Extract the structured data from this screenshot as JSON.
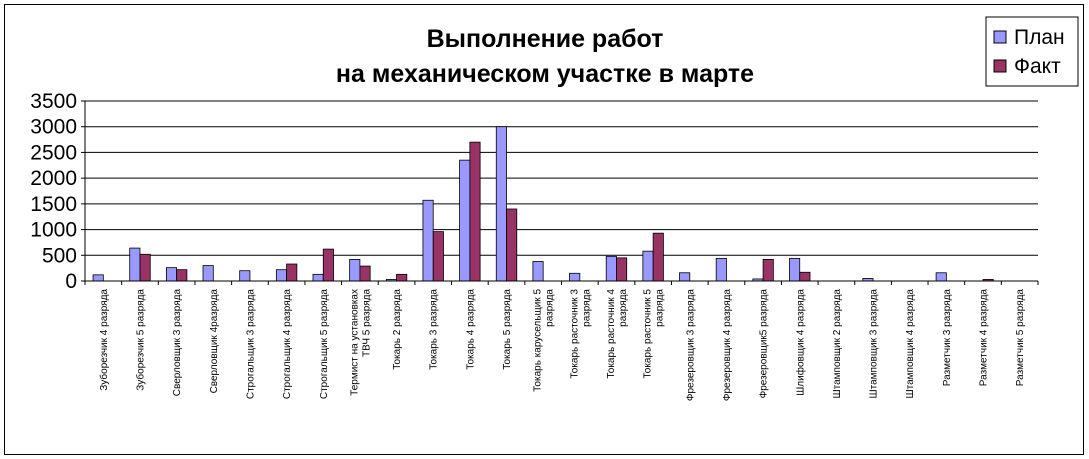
{
  "chart_data": {
    "type": "bar",
    "title": [
      "Выполнение работ",
      "на механическом участке в марте"
    ],
    "ylim": [
      0,
      3500
    ],
    "yticks": [
      0,
      500,
      1000,
      1500,
      2000,
      2500,
      3000,
      3500
    ],
    "grid": true,
    "legend_position": "top-right",
    "categories": [
      "Зуборезчик 4 разряда",
      "Зуборезчик 5 разряда",
      "Сверловщик 3 разряда",
      "Сверловщик 4разряда",
      "Строгальщик 3 разряда",
      "Строгальщик 4 разряда",
      "Строгальщик 5 разряда",
      "Термист на установках ТВЧ 5 разряда",
      "Токарь 2 разряда",
      "Токарь 3 разряда",
      "Токарь 4 разряда",
      "Токарь 5 разряда",
      "Токарь карусельщик 5 разряда",
      "Токарь расточник 3 разряда",
      "Токарь расточник 4 разряда",
      "Токарь расточник 5 разряда",
      "Фрезеровщик 3 разряда",
      "Фрезеровщик 4 разряда",
      "Фрезеровщик5 разряда",
      "Шлифовщик 4 разряда",
      "Штамповщик 2 разряда",
      "Штамповщик 3 разряда",
      "Штамповщик 4 разряда",
      "Разметчик 3 разряда",
      "Разметчик 4 разряда",
      "Разметчик 5 разряда"
    ],
    "series": [
      {
        "name": "План",
        "color": "#9999ff",
        "values": [
          120,
          640,
          260,
          300,
          200,
          220,
          130,
          420,
          30,
          1570,
          2350,
          3000,
          380,
          150,
          480,
          580,
          160,
          440,
          40,
          440,
          0,
          50,
          0,
          160,
          0,
          0
        ]
      },
      {
        "name": "Факт",
        "color": "#993366",
        "values": [
          0,
          520,
          220,
          0,
          0,
          330,
          620,
          290,
          130,
          960,
          2700,
          1400,
          0,
          0,
          450,
          930,
          0,
          0,
          420,
          170,
          0,
          0,
          0,
          0,
          30,
          0
        ]
      }
    ]
  }
}
